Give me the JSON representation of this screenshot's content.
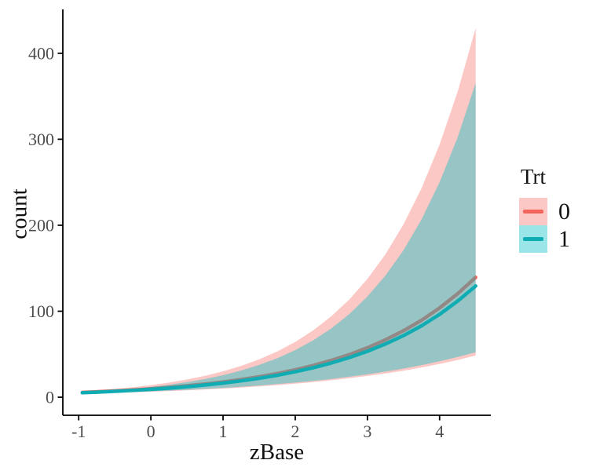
{
  "chart_data": {
    "type": "line",
    "title": "",
    "xlabel": "zBase",
    "ylabel": "count",
    "grid": false,
    "x_axis": {
      "ticks": [
        "-1",
        "0",
        "1",
        "2",
        "3",
        "4"
      ],
      "tick_values": [
        -1,
        0,
        1,
        2,
        3,
        4
      ],
      "range": [
        -1.22,
        4.71
      ]
    },
    "y_axis": {
      "ticks": [
        "0",
        "100",
        "200",
        "300",
        "400"
      ],
      "tick_values": [
        0,
        100,
        200,
        300,
        400
      ],
      "range": [
        -21,
        451
      ]
    },
    "legend": {
      "title": "Trt",
      "position": "right"
    },
    "x": [
      -0.95,
      -0.75,
      -0.5,
      -0.25,
      0,
      0.25,
      0.5,
      0.75,
      1,
      1.25,
      1.5,
      1.75,
      2,
      2.25,
      2.5,
      2.75,
      3,
      3.25,
      3.5,
      3.75,
      4,
      4.25,
      4.5
    ],
    "series": [
      {
        "name": "0",
        "line_color": "#F3655C",
        "fill_color": "#F8766D",
        "fill_opacity": 0.4,
        "estimate": [
          5.6,
          6.3,
          7.3,
          8.5,
          9.8,
          11.4,
          13.2,
          15.3,
          17.7,
          20.5,
          23.7,
          27.5,
          31.9,
          36.9,
          42.8,
          49.6,
          57.5,
          66.7,
          77.3,
          89.5,
          103.8,
          120.3,
          139.4
        ],
        "ci_lower": [
          4.2,
          4.6,
          5.1,
          5.7,
          6.4,
          7.2,
          8.0,
          9.0,
          10.0,
          11.2,
          12.6,
          14.1,
          15.7,
          17.6,
          19.7,
          22.1,
          24.7,
          27.6,
          30.9,
          34.6,
          38.7,
          43.3,
          48.5
        ],
        "ci_upper": [
          6.9,
          8.0,
          9.6,
          11.7,
          14.1,
          17.0,
          20.6,
          24.9,
          30.1,
          36.4,
          44.0,
          53.2,
          64.3,
          77.8,
          94.1,
          113.7,
          137.5,
          166.2,
          201.0,
          243.0,
          293.7,
          355.1,
          429.4
        ]
      },
      {
        "name": "1",
        "line_color": "#0FACB3",
        "fill_color": "#00BFC4",
        "fill_opacity": 0.4,
        "estimate": [
          5.2,
          5.8,
          6.8,
          7.9,
          9.1,
          10.5,
          12.2,
          14.2,
          16.4,
          19.0,
          22.0,
          25.5,
          29.6,
          34.3,
          39.8,
          46.1,
          53.4,
          61.9,
          71.7,
          83.1,
          96.3,
          111.7,
          129.4
        ],
        "ci_lower": [
          4.5,
          4.9,
          5.5,
          6.2,
          6.9,
          7.7,
          8.6,
          9.7,
          10.8,
          12.1,
          13.6,
          15.2,
          17.0,
          19.0,
          21.3,
          23.8,
          26.6,
          29.8,
          33.3,
          37.3,
          41.7,
          46.7,
          52.3
        ],
        "ci_upper": [
          5.8,
          6.8,
          8.2,
          9.9,
          12.0,
          14.5,
          17.5,
          21.2,
          25.6,
          31.0,
          37.5,
          45.3,
          54.8,
          66.2,
          80.0,
          96.8,
          117.0,
          141.5,
          171.0,
          206.8,
          250.0,
          302.2,
          365.4
        ]
      }
    ],
    "style": {
      "axis_color": "#000000",
      "tick_label_color": "#4D4D4D",
      "line_width": 4.5
    }
  }
}
